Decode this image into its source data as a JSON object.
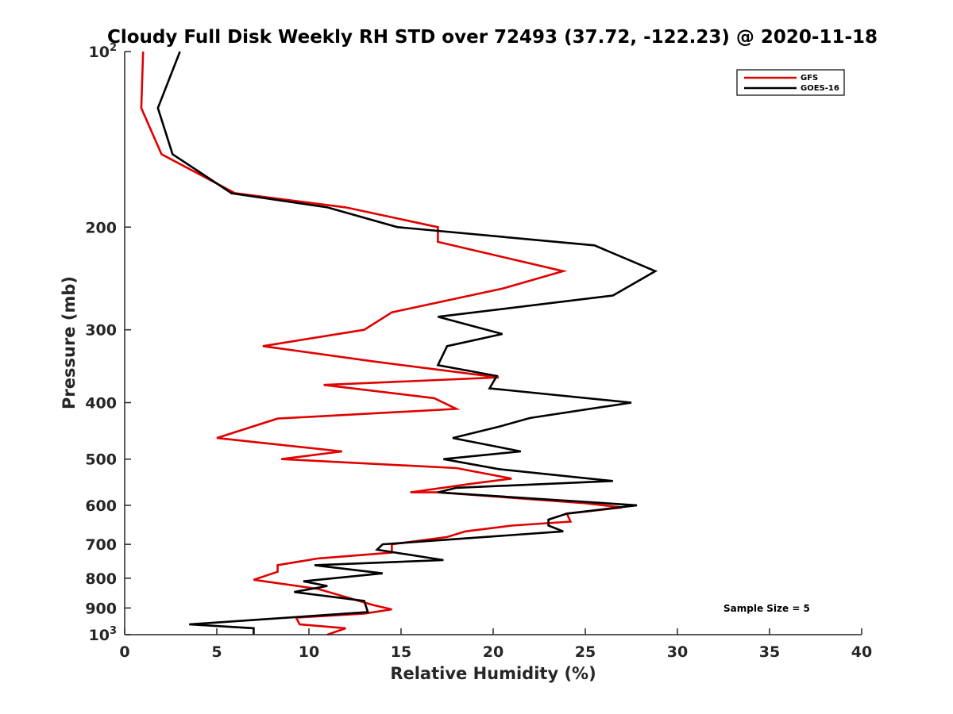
{
  "chart_data": {
    "type": "line",
    "title": "Cloudy Full Disk Weekly RH STD over 72493 (37.72, -122.23) @ 2020-11-18",
    "xlabel": "Relative Humidity (%)",
    "ylabel": "Pressure (mb)",
    "xlim": [
      0,
      40
    ],
    "ylim": [
      100,
      1000
    ],
    "yscale": "log",
    "y_reversed": true,
    "grid": false,
    "legend_position": "top-right",
    "x_ticks": [
      "0",
      "5",
      "10",
      "15",
      "20",
      "25",
      "30",
      "35",
      "40"
    ],
    "y_ticks": [
      {
        "value": 100,
        "label": "10",
        "sup": "2"
      },
      {
        "value": 200,
        "label": "200",
        "sup": ""
      },
      {
        "value": 300,
        "label": "300",
        "sup": ""
      },
      {
        "value": 400,
        "label": "400",
        "sup": ""
      },
      {
        "value": 500,
        "label": "500",
        "sup": ""
      },
      {
        "value": 600,
        "label": "600",
        "sup": ""
      },
      {
        "value": 700,
        "label": "700",
        "sup": ""
      },
      {
        "value": 800,
        "label": "800",
        "sup": ""
      },
      {
        "value": 900,
        "label": "900",
        "sup": ""
      },
      {
        "value": 1000,
        "label": "10",
        "sup": "3"
      }
    ],
    "annotation": "Sample Size = 5",
    "series": [
      {
        "name": "GFS",
        "color": "#e00000",
        "points": [
          [
            1.0,
            100
          ],
          [
            0.9,
            125
          ],
          [
            2.0,
            150
          ],
          [
            6.0,
            175
          ],
          [
            12.0,
            185
          ],
          [
            17.0,
            200
          ],
          [
            17.0,
            212
          ],
          [
            23.8,
            238
          ],
          [
            20.5,
            255
          ],
          [
            14.5,
            280
          ],
          [
            13.0,
            300
          ],
          [
            7.5,
            320
          ],
          [
            13.5,
            340
          ],
          [
            20.3,
            362
          ],
          [
            10.8,
            373
          ],
          [
            16.8,
            393
          ],
          [
            18.0,
            410
          ],
          [
            8.3,
            426
          ],
          [
            5.0,
            460
          ],
          [
            11.8,
            485
          ],
          [
            8.5,
            500
          ],
          [
            18.0,
            518
          ],
          [
            21.0,
            540
          ],
          [
            19.0,
            550
          ],
          [
            15.5,
            570
          ],
          [
            17.0,
            570
          ],
          [
            25.0,
            595
          ],
          [
            27.0,
            605
          ],
          [
            24.0,
            620
          ],
          [
            24.2,
            640
          ],
          [
            21.0,
            650
          ],
          [
            18.5,
            665
          ],
          [
            17.5,
            680
          ],
          [
            14.5,
            700
          ],
          [
            14.5,
            723
          ],
          [
            10.5,
            740
          ],
          [
            8.3,
            760
          ],
          [
            8.3,
            780
          ],
          [
            7.0,
            805
          ],
          [
            10.5,
            835
          ],
          [
            13.5,
            890
          ],
          [
            14.5,
            905
          ],
          [
            13.0,
            920
          ],
          [
            9.3,
            935
          ],
          [
            9.5,
            960
          ],
          [
            12.0,
            975
          ],
          [
            11.0,
            1000
          ]
        ]
      },
      {
        "name": "GOES-16",
        "color": "#000000",
        "points": [
          [
            3.0,
            100
          ],
          [
            1.8,
            125
          ],
          [
            2.6,
            150
          ],
          [
            5.8,
            175
          ],
          [
            11.0,
            185
          ],
          [
            14.8,
            200
          ],
          [
            25.5,
            215
          ],
          [
            28.8,
            238
          ],
          [
            26.5,
            262
          ],
          [
            17.0,
            285
          ],
          [
            20.5,
            305
          ],
          [
            17.5,
            320
          ],
          [
            17.0,
            345
          ],
          [
            20.2,
            360
          ],
          [
            19.8,
            378
          ],
          [
            27.5,
            400
          ],
          [
            22.0,
            425
          ],
          [
            20.3,
            440
          ],
          [
            17.8,
            460
          ],
          [
            21.5,
            485
          ],
          [
            17.3,
            500
          ],
          [
            20.3,
            520
          ],
          [
            26.5,
            545
          ],
          [
            18.0,
            560
          ],
          [
            17.0,
            570
          ],
          [
            27.8,
            600
          ],
          [
            24.0,
            620
          ],
          [
            23.0,
            635
          ],
          [
            23.0,
            650
          ],
          [
            23.8,
            665
          ],
          [
            14.0,
            700
          ],
          [
            13.7,
            715
          ],
          [
            17.3,
            745
          ],
          [
            10.3,
            760
          ],
          [
            14.0,
            785
          ],
          [
            9.7,
            810
          ],
          [
            11.0,
            825
          ],
          [
            9.2,
            845
          ],
          [
            13.0,
            875
          ],
          [
            13.2,
            915
          ],
          [
            3.5,
            960
          ],
          [
            7.0,
            975
          ],
          [
            7.0,
            1000
          ]
        ]
      }
    ]
  }
}
